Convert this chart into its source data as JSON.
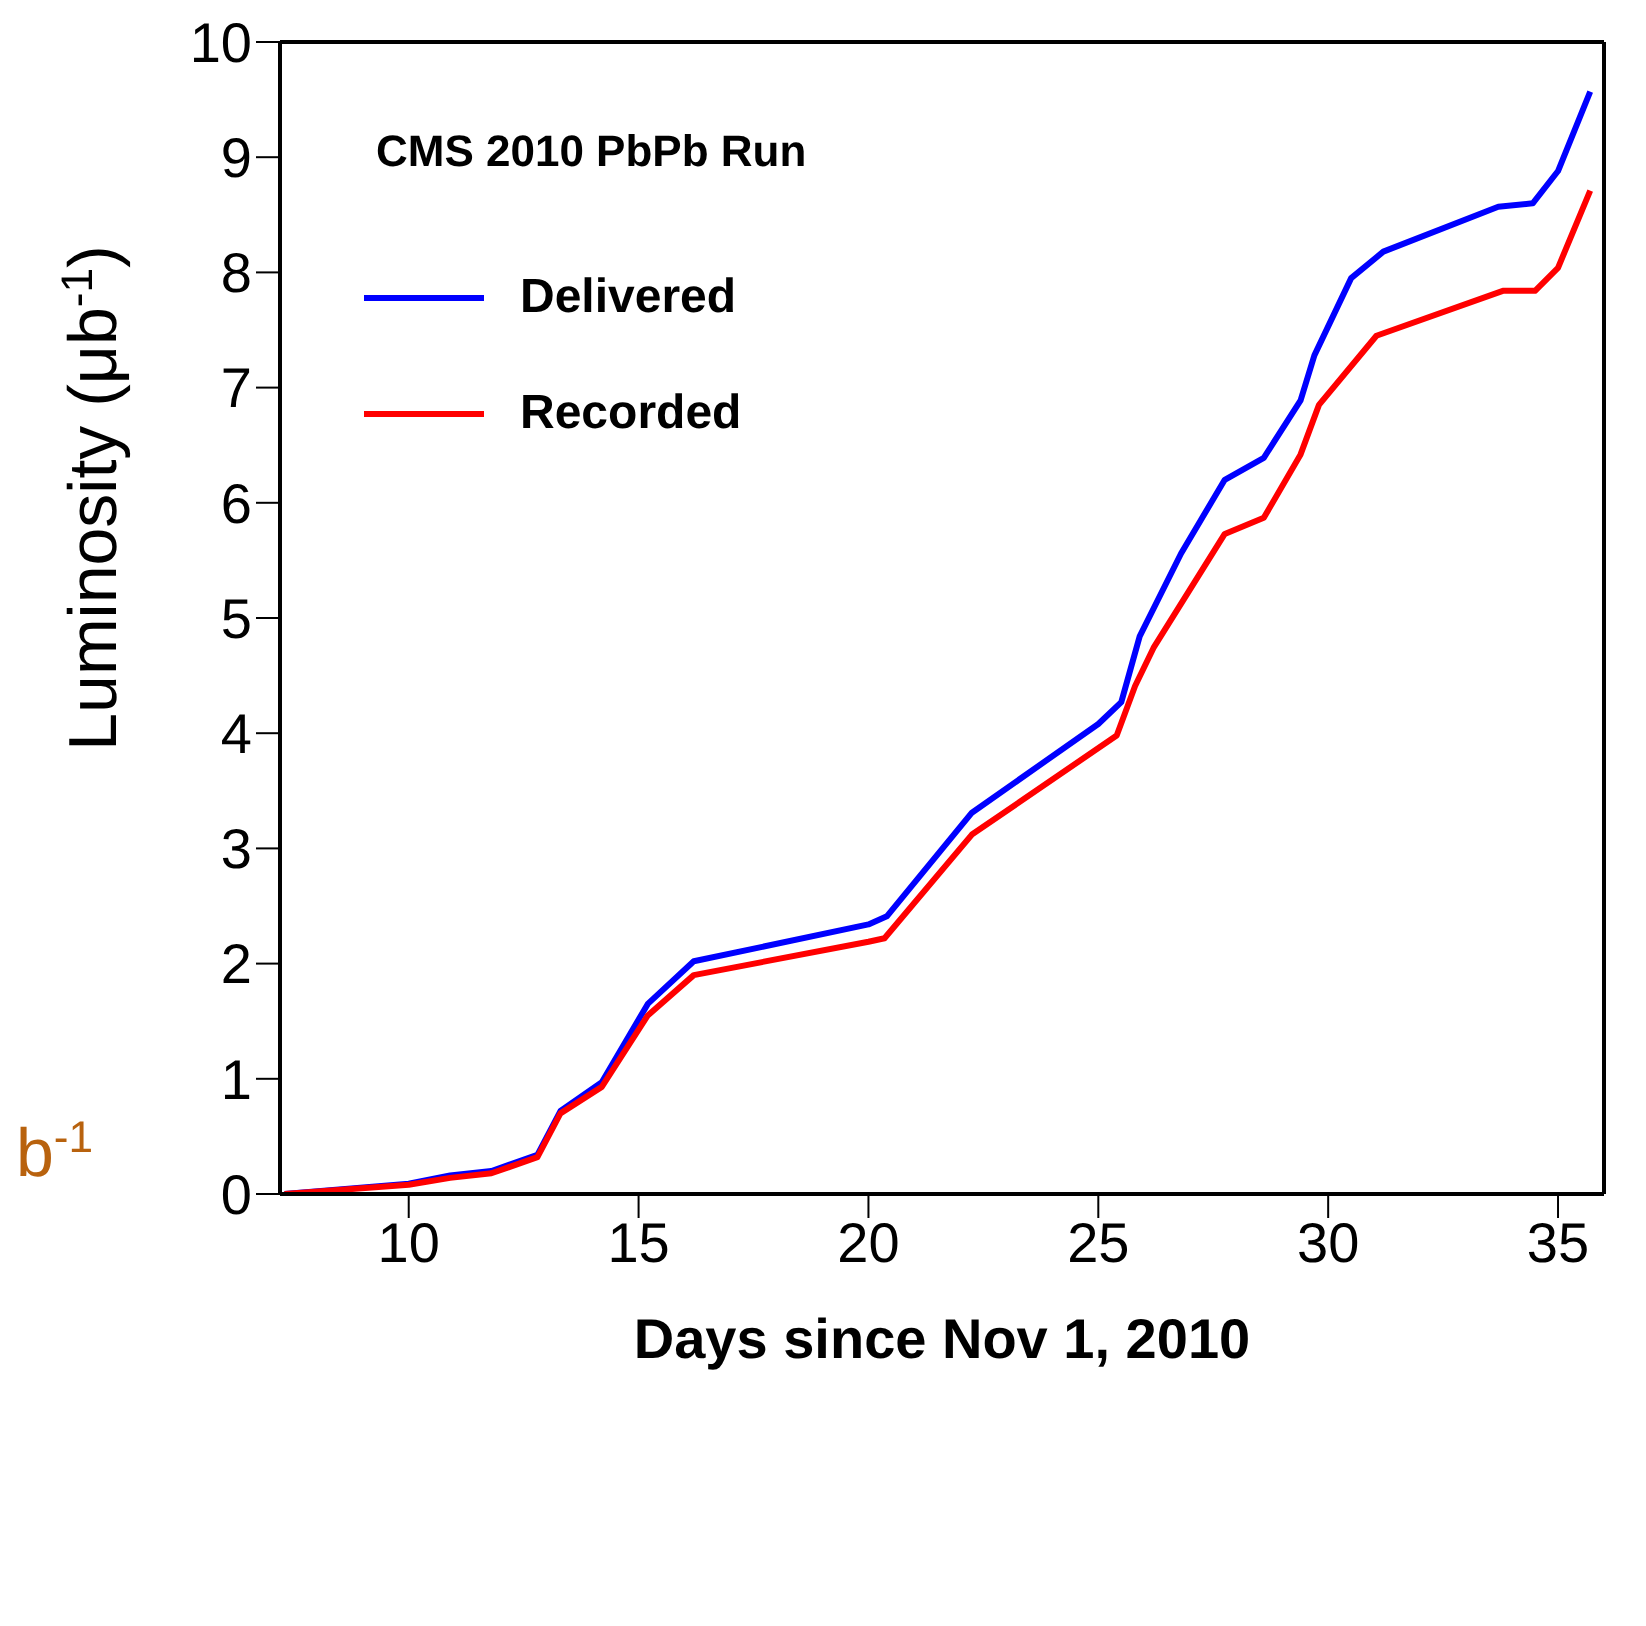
{
  "chart_data": {
    "type": "line",
    "title": "CMS 2010 PbPb Run",
    "xlabel": "Days since Nov 1, 2010",
    "ylabel": "Luminosity (μb$^{-1}$)",
    "annotations": [
      "b$^{-1}$"
    ],
    "xlim": [
      7.2,
      36
    ],
    "xticks": [
      10,
      15,
      20,
      25,
      30,
      35
    ],
    "ylim": [
      0,
      10
    ],
    "yticks": [
      0,
      1,
      2,
      3,
      4,
      5,
      6,
      7,
      8,
      9,
      10
    ],
    "legend": "top left",
    "marker": "none",
    "line_style": "solid",
    "series": [
      {
        "name": "Delivered",
        "color": "#0000ff",
        "x": [
          7.3,
          10,
          10.9,
          11.8,
          12.8,
          13.3,
          14.2,
          15.2,
          16.2,
          20,
          20.4,
          22.25,
          25,
          25.5,
          25.9,
          26.8,
          27.75,
          28.6,
          29.4,
          29.7,
          30.5,
          31.2,
          33.7,
          34.45,
          35,
          35.7
        ],
        "values": [
          0,
          0.09,
          0.16,
          0.2,
          0.34,
          0.72,
          0.97,
          1.65,
          2.02,
          2.34,
          2.41,
          3.31,
          4.08,
          4.27,
          4.84,
          5.56,
          6.2,
          6.39,
          6.89,
          7.28,
          7.95,
          8.18,
          8.57,
          8.6,
          8.88,
          9.57
        ]
      },
      {
        "name": "Recorded",
        "color": "#ff0000",
        "x": [
          7.3,
          10,
          10.9,
          11.8,
          12.8,
          13.3,
          14.2,
          15.2,
          16.2,
          20,
          20.35,
          22.25,
          25.4,
          25.8,
          26.2,
          27.75,
          28.6,
          29.4,
          29.8,
          31.05,
          33.8,
          34.5,
          35,
          35.7
        ],
        "values": [
          0,
          0.08,
          0.14,
          0.18,
          0.32,
          0.7,
          0.93,
          1.55,
          1.9,
          2.19,
          2.22,
          3.12,
          3.98,
          4.41,
          4.74,
          5.73,
          5.87,
          6.42,
          6.85,
          7.45,
          7.84,
          7.84,
          8.04,
          8.71
        ]
      }
    ]
  }
}
